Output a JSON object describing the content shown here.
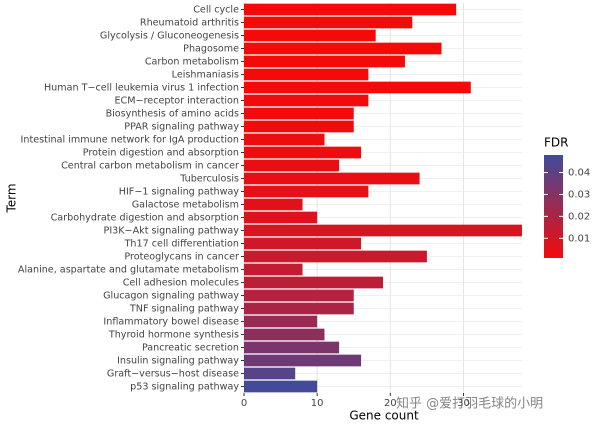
{
  "chart_data": {
    "type": "bar",
    "orientation": "horizontal",
    "y_label": "Term",
    "x_label": "Gene count",
    "legend_title": "FDR",
    "categories": [
      "Cell cycle",
      "Rheumatoid arthritis",
      "Glycolysis / Gluconeogenesis",
      "Phagosome",
      "Carbon metabolism",
      "Leishmaniasis",
      "Human T−cell leukemia virus 1 infection",
      "ECM−receptor interaction",
      "Biosynthesis of amino acids",
      "PPAR signaling pathway",
      "Intestinal immune network for IgA production",
      "Protein digestion and absorption",
      "Central carbon metabolism in cancer",
      "Tuberculosis",
      "HIF−1 signaling pathway",
      "Galactose metabolism",
      "Carbohydrate digestion and absorption",
      "PI3K−Akt signaling pathway",
      "Th17 cell differentiation",
      "Proteoglycans in cancer",
      "Alanine, aspartate and glutamate metabolism",
      "Cell adhesion molecules",
      "Glucagon signaling pathway",
      "TNF signaling pathway",
      "Inflammatory bowel disease",
      "Thyroid hormone synthesis",
      "Pancreatic secretion",
      "Insulin signaling pathway",
      "Graft−versus−host disease",
      "p53 signaling pathway"
    ],
    "values": [
      29,
      23,
      18,
      27,
      22,
      17,
      31,
      17,
      15,
      15,
      11,
      16,
      13,
      24,
      17,
      8,
      10,
      38,
      16,
      25,
      8,
      19,
      15,
      15,
      10,
      11,
      13,
      16,
      7,
      10
    ],
    "fdr": [
      0.001,
      0.001,
      0.001,
      0.001,
      0.001,
      0.001,
      0.001,
      0.002,
      0.002,
      0.002,
      0.003,
      0.003,
      0.004,
      0.004,
      0.005,
      0.006,
      0.007,
      0.009,
      0.011,
      0.012,
      0.014,
      0.016,
      0.018,
      0.02,
      0.025,
      0.028,
      0.033,
      0.036,
      0.042,
      0.047
    ],
    "fdr_lim": [
      0.001,
      0.048
    ],
    "low_color": "#f50a0a",
    "high_color": "#3f4b9b",
    "colorbar_ticks": [
      0.01,
      0.02,
      0.03,
      0.04
    ],
    "xlim": [
      0,
      38
    ],
    "xticks": [
      0,
      10,
      20,
      30
    ],
    "grid": true,
    "watermark": "知乎 @爱打羽毛球的小明"
  }
}
